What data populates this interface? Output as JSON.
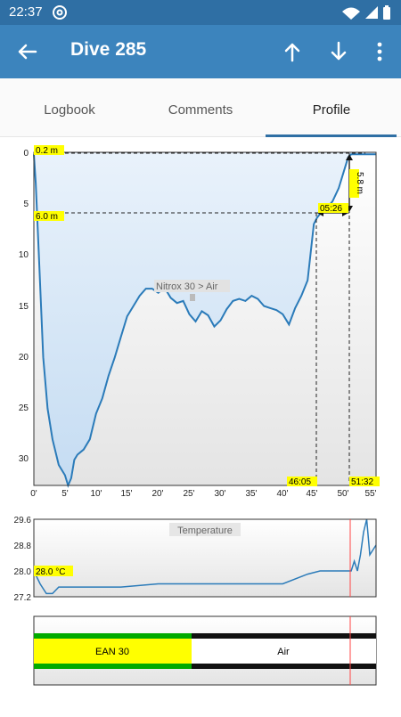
{
  "status": {
    "time": "22:37"
  },
  "header": {
    "title": "Dive 285"
  },
  "tabs": [
    {
      "label": "Logbook"
    },
    {
      "label": "Comments"
    },
    {
      "label": "Profile"
    }
  ],
  "colors": {
    "status_bar": "#2f6fa4",
    "app_bar": "#3c84bd",
    "profile_line": "#2b7bb9",
    "marker": "#ffff00",
    "gas_ean": "#ffff00",
    "gas_bar_border": "#00aa00"
  },
  "icons": [
    "back-arrow-icon",
    "arrow-up-icon",
    "arrow-down-icon",
    "more-vert-icon",
    "wifi-icon",
    "battery-icon"
  ],
  "chart_data": [
    {
      "type": "line",
      "name": "depth-profile",
      "y_ticks": [
        "0",
        "5",
        "10",
        "15",
        "20",
        "25",
        "30"
      ],
      "x_ticks": [
        "0'",
        "5'",
        "10'",
        "15'",
        "20'",
        "25'",
        "30'",
        "35'",
        "40'",
        "45'",
        "50'",
        "55'"
      ],
      "ylim": [
        0,
        32.5
      ],
      "xlim": [
        0,
        55
      ],
      "y_inverted": true,
      "x": [
        0,
        0.3,
        0.8,
        1.5,
        2.2,
        3,
        4,
        5,
        5.5,
        6,
        6.5,
        7,
        8,
        9,
        10,
        11,
        12,
        13,
        14,
        15,
        16,
        17,
        18,
        19,
        20,
        21,
        22,
        23,
        24,
        25,
        26,
        27,
        28,
        29,
        30,
        31,
        32,
        33,
        34,
        35,
        36,
        37,
        38,
        39,
        40,
        41,
        42,
        43,
        44,
        45,
        45.5,
        46,
        47,
        48,
        49,
        50,
        50.5,
        51,
        51.5,
        52,
        53,
        54,
        55
      ],
      "y": [
        0.2,
        3,
        10,
        20,
        25,
        28,
        30.5,
        31.5,
        32.5,
        31.8,
        30,
        29.5,
        29,
        28,
        25.5,
        24,
        21.8,
        20,
        18,
        16,
        15,
        14,
        13.3,
        13.3,
        13.7,
        13.2,
        14.2,
        14.7,
        14.5,
        15.8,
        16.5,
        15.5,
        15.9,
        17,
        16.4,
        15.3,
        14.5,
        14.3,
        14.5,
        14,
        14.3,
        15,
        15.2,
        15.4,
        15.8,
        16.8,
        15.2,
        14,
        12.5,
        7,
        6.4,
        6.0,
        5.5,
        4.8,
        3.5,
        1.5,
        0.5,
        0.2,
        0.2,
        0.2,
        0.2,
        0.2,
        0.2
      ],
      "gas_change_label": "Nitrox 30 > Air",
      "markers": {
        "start_depth": "0.2 m",
        "depth_level": "6.0 m",
        "ascent_duration": "05:26",
        "ascent_depth": "5.8 m",
        "time_start_ascent": "46:05",
        "time_end": "51:32"
      }
    },
    {
      "type": "line",
      "name": "temperature",
      "title": "Temperature",
      "y_ticks": [
        "29.6",
        "28.8",
        "28.0",
        "27.2"
      ],
      "ylim": [
        27.2,
        29.6
      ],
      "xlim": [
        0,
        55
      ],
      "x": [
        0,
        1,
        2,
        3,
        4,
        6,
        8,
        10,
        14,
        20,
        26,
        30,
        36,
        40,
        44,
        46,
        48,
        50,
        51,
        51.5,
        52,
        52.5,
        53,
        53.5,
        54,
        55
      ],
      "y": [
        28.0,
        27.6,
        27.3,
        27.3,
        27.5,
        27.5,
        27.5,
        27.5,
        27.5,
        27.6,
        27.6,
        27.6,
        27.6,
        27.6,
        27.9,
        28.0,
        28.0,
        28.0,
        28.0,
        28.3,
        28.0,
        28.5,
        29.2,
        29.6,
        28.5,
        28.8
      ],
      "label": "28.0 °C"
    },
    {
      "type": "bar",
      "name": "gas-usage",
      "segments": [
        {
          "label": "EAN 30",
          "start": 0,
          "end": 25.5
        },
        {
          "label": "Air",
          "start": 25.5,
          "end": 55
        }
      ]
    }
  ]
}
